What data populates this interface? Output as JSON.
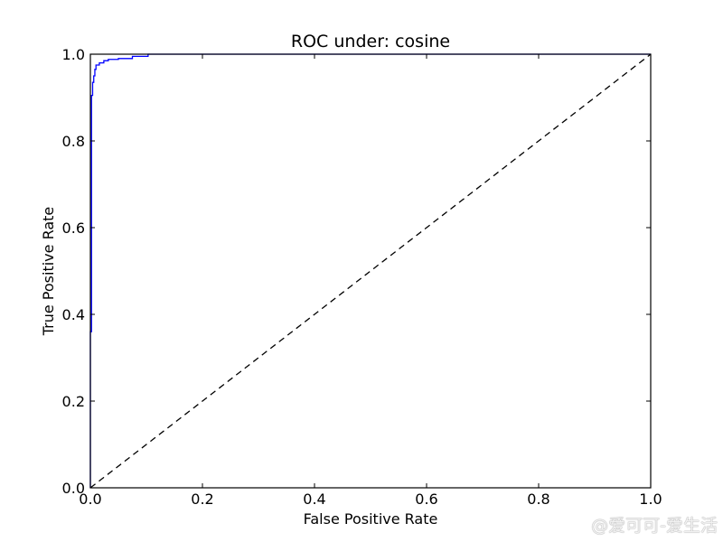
{
  "chart_data": {
    "type": "line",
    "title": "ROC under: cosine",
    "xlabel": "False Positive Rate",
    "ylabel": "True Positive Rate",
    "xlim": [
      0.0,
      1.0
    ],
    "ylim": [
      0.0,
      1.0
    ],
    "x_ticks": [
      "0.0",
      "0.2",
      "0.4",
      "0.6",
      "0.8",
      "1.0"
    ],
    "y_ticks": [
      "0.0",
      "0.2",
      "0.4",
      "0.6",
      "0.8",
      "1.0"
    ],
    "grid": false,
    "legend": "none",
    "series": [
      {
        "color": "#0000ff",
        "style": "solid",
        "x": [
          0.0,
          0.0,
          0.002,
          0.002,
          0.004,
          0.004,
          0.006,
          0.006,
          0.008,
          0.008,
          0.01,
          0.01,
          0.016,
          0.016,
          0.024,
          0.024,
          0.032,
          0.032,
          0.05,
          0.05,
          0.075,
          0.075,
          0.103,
          0.103,
          1.0
        ],
        "y": [
          0.0,
          0.36,
          0.36,
          0.905,
          0.905,
          0.935,
          0.935,
          0.95,
          0.95,
          0.965,
          0.965,
          0.975,
          0.975,
          0.98,
          0.98,
          0.985,
          0.985,
          0.988,
          0.988,
          0.99,
          0.99,
          0.995,
          0.995,
          1.0,
          1.0
        ]
      },
      {
        "color": "#000000",
        "style": "dashed",
        "x": [
          0.0,
          1.0
        ],
        "y": [
          0.0,
          1.0
        ]
      }
    ]
  },
  "watermark": "@爱可可-爱生活"
}
